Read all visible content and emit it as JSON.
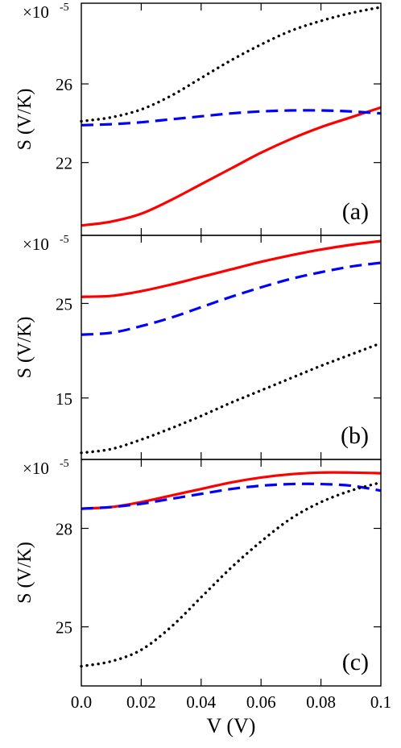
{
  "colors": {
    "solid": "#ff0000",
    "dashed": "#0000ff",
    "dotted": "#000000"
  },
  "xaxis": {
    "label": "V (V)",
    "range": [
      0,
      0.1
    ],
    "ticks": [
      0,
      0.02,
      0.04,
      0.06,
      0.08,
      0.1
    ],
    "tick_labels": [
      "0.0",
      "0.02",
      "0.04",
      "0.06",
      "0.08",
      "0.1"
    ]
  },
  "chart_data": [
    {
      "type": "line",
      "panel_label": "(a)",
      "ylabel": "S (V/K)",
      "scale_label": "×10",
      "scale_exponent": "-5",
      "ylim": [
        18.3,
        30.1
      ],
      "yticks": [
        22,
        26
      ],
      "ytick_labels": [
        "22",
        "26"
      ],
      "series": [
        {
          "style": "solid",
          "x": [
            0,
            0.01,
            0.02,
            0.03,
            0.04,
            0.05,
            0.06,
            0.07,
            0.08,
            0.09,
            0.1
          ],
          "y": [
            18.8,
            19.0,
            19.4,
            20.1,
            20.9,
            21.7,
            22.5,
            23.2,
            23.8,
            24.3,
            24.8
          ]
        },
        {
          "style": "dashed",
          "x": [
            0,
            0.01,
            0.02,
            0.03,
            0.04,
            0.05,
            0.06,
            0.07,
            0.08,
            0.09,
            0.1
          ],
          "y": [
            23.9,
            23.95,
            24.05,
            24.2,
            24.35,
            24.5,
            24.6,
            24.65,
            24.65,
            24.6,
            24.5
          ]
        },
        {
          "style": "dotted",
          "x": [
            0,
            0.01,
            0.02,
            0.03,
            0.04,
            0.05,
            0.06,
            0.07,
            0.08,
            0.09,
            0.1
          ],
          "y": [
            24.1,
            24.3,
            24.7,
            25.4,
            26.3,
            27.2,
            28.0,
            28.7,
            29.2,
            29.6,
            29.9
          ]
        }
      ]
    },
    {
      "type": "line",
      "panel_label": "(b)",
      "ylabel": "S (V/K)",
      "scale_label": "×10",
      "scale_exponent": "-5",
      "ylim": [
        8.5,
        32.2
      ],
      "yticks": [
        15,
        25
      ],
      "ytick_labels": [
        "15",
        "25"
      ],
      "series": [
        {
          "style": "solid",
          "x": [
            0,
            0.01,
            0.02,
            0.03,
            0.04,
            0.05,
            0.06,
            0.07,
            0.08,
            0.09,
            0.1
          ],
          "y": [
            25.7,
            25.8,
            26.3,
            27.0,
            27.8,
            28.6,
            29.4,
            30.1,
            30.7,
            31.2,
            31.6
          ]
        },
        {
          "style": "dashed",
          "x": [
            0,
            0.01,
            0.02,
            0.03,
            0.04,
            0.05,
            0.06,
            0.07,
            0.08,
            0.09,
            0.1
          ],
          "y": [
            21.7,
            21.9,
            22.6,
            23.5,
            24.6,
            25.7,
            26.7,
            27.6,
            28.3,
            28.9,
            29.3
          ]
        },
        {
          "style": "dotted",
          "x": [
            0,
            0.01,
            0.02,
            0.03,
            0.04,
            0.05,
            0.06,
            0.07,
            0.08,
            0.09,
            0.1
          ],
          "y": [
            9.2,
            9.6,
            10.6,
            11.8,
            13.1,
            14.5,
            15.8,
            17.1,
            18.4,
            19.6,
            20.8
          ]
        }
      ]
    },
    {
      "type": "line",
      "panel_label": "(c)",
      "ylabel": "S (V/K)",
      "scale_label": "×10",
      "scale_exponent": "-5",
      "ylim": [
        23.2,
        30.1
      ],
      "yticks": [
        25,
        28
      ],
      "ytick_labels": [
        "25",
        "28"
      ],
      "series": [
        {
          "style": "solid",
          "x": [
            0,
            0.01,
            0.02,
            0.03,
            0.04,
            0.05,
            0.06,
            0.07,
            0.08,
            0.09,
            0.1
          ],
          "y": [
            28.6,
            28.65,
            28.8,
            29.0,
            29.2,
            29.4,
            29.55,
            29.65,
            29.7,
            29.7,
            29.68
          ]
        },
        {
          "style": "dashed",
          "x": [
            0,
            0.01,
            0.02,
            0.03,
            0.04,
            0.05,
            0.06,
            0.07,
            0.08,
            0.09,
            0.1
          ],
          "y": [
            28.6,
            28.65,
            28.75,
            28.9,
            29.05,
            29.2,
            29.3,
            29.35,
            29.35,
            29.3,
            29.15
          ]
        },
        {
          "style": "dotted",
          "x": [
            0,
            0.01,
            0.02,
            0.03,
            0.04,
            0.05,
            0.06,
            0.07,
            0.08,
            0.09,
            0.1
          ],
          "y": [
            23.8,
            23.95,
            24.3,
            25.0,
            25.9,
            26.8,
            27.6,
            28.3,
            28.8,
            29.15,
            29.4
          ]
        }
      ]
    }
  ]
}
